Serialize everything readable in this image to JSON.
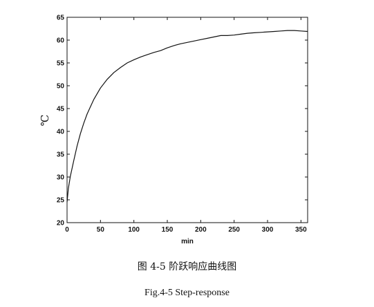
{
  "chart_data": {
    "type": "line",
    "xlabel": "min",
    "ylabel": "℃",
    "xlim": [
      0,
      360
    ],
    "ylim": [
      20,
      65
    ],
    "xticks": [
      0,
      50,
      100,
      150,
      200,
      250,
      300,
      350
    ],
    "yticks": [
      20,
      25,
      30,
      35,
      40,
      45,
      50,
      55,
      60,
      65
    ],
    "grid": false,
    "series": [
      {
        "x": [
          0,
          2,
          5,
          10,
          15,
          20,
          25,
          30,
          40,
          50,
          60,
          70,
          80,
          90,
          100,
          110,
          120,
          130,
          140,
          150,
          160,
          170,
          180,
          190,
          200,
          210,
          220,
          230,
          240,
          250,
          260,
          270,
          280,
          290,
          300,
          310,
          320,
          330,
          340,
          350,
          360
        ],
        "y": [
          24.5,
          27.5,
          30.2,
          33.6,
          36.8,
          39.5,
          41.8,
          43.8,
          47.0,
          49.5,
          51.4,
          52.9,
          54.0,
          55.0,
          55.7,
          56.3,
          56.8,
          57.3,
          57.7,
          58.3,
          58.8,
          59.2,
          59.5,
          59.8,
          60.1,
          60.4,
          60.7,
          61.0,
          61.0,
          61.1,
          61.3,
          61.5,
          61.6,
          61.7,
          61.8,
          61.9,
          62.0,
          62.1,
          62.1,
          62.0,
          61.9
        ],
        "color": "#111111"
      }
    ]
  },
  "captions": {
    "chinese": "图 4-5  阶跃响应曲线图",
    "english": "Fig.4-5 Step-response"
  }
}
